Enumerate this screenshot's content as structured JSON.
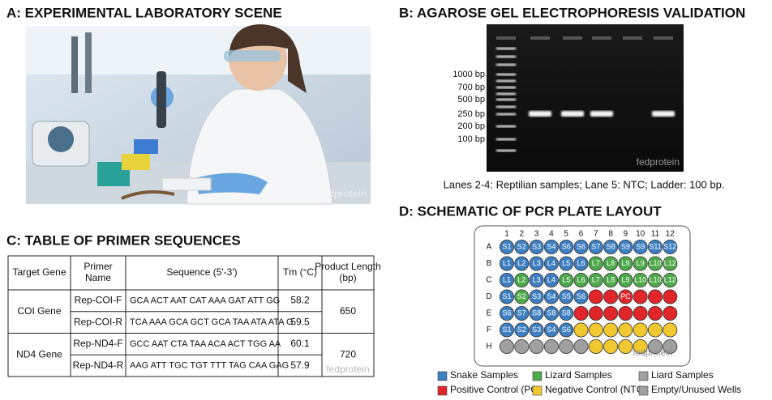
{
  "panel_a": {
    "title": "A: EXPERIMENTAL LABORATORY SCENE",
    "watermark": "fedprotein"
  },
  "panel_b": {
    "title": "B: AGAROSE GEL ELECTROPHORESIS VALIDATION",
    "ladder_labels": [
      "1000 bp",
      "700 bp",
      "500 bp",
      "250 bp",
      "200 bp",
      "100 bp"
    ],
    "caption": "Lanes 2-4: Reptilian samples; Lane 5: NTC; Ladder: 100 bp.",
    "watermark": "fedprotein"
  },
  "panel_c": {
    "title": "C: TABLE OF PRIMER SEQUENCES",
    "header": [
      "Target Gene",
      "Primer Name",
      "Sequence (5'-3')",
      "Tm (°C)",
      "Product Length (bp)"
    ],
    "groups": [
      {
        "gene": "COI Gene",
        "product": 650,
        "primers": [
          {
            "name": "Rep-COI-F",
            "sequence": "GCA ACT AAT CAT AAA GAT ATT GG",
            "tm": 58.2
          },
          {
            "name": "Rep-COI-R",
            "sequence": "TCA AAA GCA GCT GCA TAA ATA ATA G",
            "tm": 59.5
          }
        ]
      },
      {
        "gene": "ND4 Gene",
        "product": 720,
        "primers": [
          {
            "name": "Rep-ND4-F",
            "sequence": "GCC AAT CTA TAA ACA ACT TGG AA",
            "tm": 60.1
          },
          {
            "name": "Rep-ND4-R",
            "sequence": "AAG ATT TGC TGT TTT TAG CAA GAG",
            "tm": 57.9
          }
        ]
      }
    ],
    "watermark": "fedprotein"
  },
  "panel_d": {
    "title": "D: SCHEMATIC OF PCR PLATE LAYOUT",
    "columns": [
      "1",
      "2",
      "3",
      "4",
      "5",
      "6",
      "7",
      "8",
      "9",
      "10",
      "11",
      "12"
    ],
    "rows": [
      {
        "label": "A",
        "wells": [
          "S1",
          "S2",
          "S3",
          "S4",
          "S6",
          "S6",
          "S7",
          "S8",
          "S9",
          "S9",
          "S11",
          "S12"
        ],
        "colors": [
          "#3e7fc1",
          "#3e7fc1",
          "#3e7fc1",
          "#3e7fc1",
          "#3e7fc1",
          "#3e7fc1",
          "#3e7fc1",
          "#3e7fc1",
          "#3e7fc1",
          "#3e7fc1",
          "#3e7fc1",
          "#3e7fc1"
        ]
      },
      {
        "label": "B",
        "wells": [
          "L1",
          "L2",
          "L3",
          "L4",
          "L5",
          "L6",
          "L7",
          "L8",
          "L9",
          "L9",
          "L10",
          "L12"
        ],
        "colors": [
          "#3e7fc1",
          "#3e7fc1",
          "#3e7fc1",
          "#3e7fc1",
          "#3e7fc1",
          "#3e7fc1",
          "#4ea94a",
          "#4ea94a",
          "#4ea94a",
          "#4ea94a",
          "#4ea94a",
          "#4ea94a"
        ]
      },
      {
        "label": "C",
        "wells": [
          "L1",
          "L2",
          "L3",
          "L4",
          "L5",
          "L6",
          "L7",
          "L8",
          "L9",
          "L10",
          "L10",
          "L12"
        ],
        "colors": [
          "#3e7fc1",
          "#4ea94a",
          "#3e7fc1",
          "#3e7fc1",
          "#4ea94a",
          "#4ea94a",
          "#4ea94a",
          "#4ea94a",
          "#4ea94a",
          "#4ea94a",
          "#4ea94a",
          "#4ea94a"
        ]
      },
      {
        "label": "D",
        "wells": [
          "S1",
          "S2",
          "S3",
          "S4",
          "S5",
          "S6",
          null,
          null,
          "PC",
          null,
          null,
          null
        ],
        "colors": [
          "#3e7fc1",
          "#4ea94a",
          "#3e7fc1",
          "#3e7fc1",
          "#3e7fc1",
          "#3e7fc1",
          "#e0262a",
          "#e0262a",
          "#e0262a",
          "#e0262a",
          "#e0262a",
          "#e0262a"
        ]
      },
      {
        "label": "E",
        "wells": [
          "S6",
          "S7",
          "S8",
          "S8",
          "S8",
          null,
          null,
          null,
          null,
          null,
          null,
          null
        ],
        "colors": [
          "#3e7fc1",
          "#3e7fc1",
          "#3e7fc1",
          "#3e7fc1",
          "#3e7fc1",
          "#e0262a",
          "#e0262a",
          "#e0262a",
          "#e0262a",
          "#e0262a",
          "#e0262a",
          "#e0262a"
        ]
      },
      {
        "label": "F",
        "wells": [
          "S1",
          "S2",
          "S3",
          "S4",
          "S6",
          null,
          null,
          null,
          null,
          null,
          null,
          null
        ],
        "colors": [
          "#3e7fc1",
          "#3e7fc1",
          "#3e7fc1",
          "#3e7fc1",
          "#3e7fc1",
          "#f2c830",
          "#f2c830",
          "#f2c830",
          "#f2c830",
          "#f2c830",
          "#f2c830",
          "#f2c830"
        ]
      },
      {
        "label": "H",
        "wells": [
          null,
          null,
          null,
          null,
          null,
          null,
          null,
          null,
          null,
          null,
          null,
          null
        ],
        "colors": [
          "#a0a0a0",
          "#a0a0a0",
          "#a0a0a0",
          "#a0a0a0",
          "#a0a0a0",
          "#a0a0a0",
          "#f2c830",
          "#f2c830",
          "#f2c830",
          "#f2c830",
          "#a0a0a0",
          "#a0a0a0"
        ]
      }
    ],
    "legend": [
      {
        "name": "Snake Samples",
        "color": "#3e7fc1"
      },
      {
        "name": "Lizard Samples",
        "color": "#4ea94a"
      },
      {
        "name": "Liard Samples",
        "color": "#a0a0a0"
      },
      {
        "name": "Positive Control (PC)",
        "color": "#e0262a"
      },
      {
        "name": "Negative Control (NTC)",
        "color": "#f2c830"
      },
      {
        "name": "Empty/Unused Wells",
        "color": "#a0a0a0"
      }
    ],
    "watermark": "fedprotein"
  }
}
